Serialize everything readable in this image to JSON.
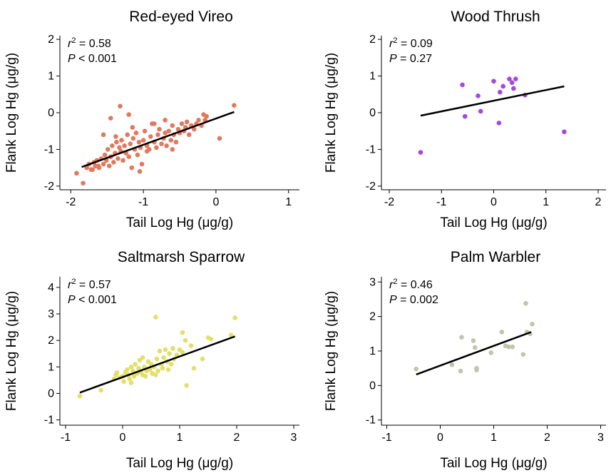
{
  "chart_data": [
    {
      "type": "scatter",
      "title": "Red-eyed Vireo",
      "xlabel": "Tail Log Hg (μg/g)",
      "ylabel": "Flank Log Hg (μg/g)",
      "xlim": [
        -2.15,
        1.15
      ],
      "ylim": [
        -2.1,
        2.1
      ],
      "xticks": [
        -2,
        -1,
        0,
        1
      ],
      "yticks": [
        -2,
        -1,
        0,
        1,
        2
      ],
      "color": "#E07A5F",
      "stat_r2": "= 0.58",
      "stat_p": "< 0.001",
      "fit": {
        "x": [
          -1.85,
          0.25
        ],
        "y": [
          -1.48,
          0.02
        ]
      },
      "series": [
        {
          "x": [
            -1.92,
            -1.83,
            -1.78,
            -1.75,
            -1.72,
            -1.68,
            -1.66,
            -1.64,
            -1.61,
            -1.58,
            -1.55,
            -1.53,
            -1.51,
            -1.49,
            -1.47,
            -1.45,
            -1.43,
            -1.41,
            -1.39,
            -1.37,
            -1.35,
            -1.33,
            -1.31,
            -1.3,
            -1.28,
            -1.26,
            -1.24,
            -1.22,
            -1.2,
            -1.18,
            -1.16,
            -1.14,
            -1.12,
            -1.1,
            -1.08,
            -1.06,
            -1.04,
            -1.02,
            -1.0,
            -0.98,
            -0.95,
            -0.92,
            -0.9,
            -0.88,
            -0.85,
            -0.82,
            -0.8,
            -0.78,
            -0.75,
            -0.72,
            -0.7,
            -0.68,
            -0.65,
            -0.62,
            -0.6,
            -0.58,
            -0.55,
            -0.52,
            -0.5,
            -0.47,
            -0.44,
            -0.42,
            -0.4,
            -0.37,
            -0.34,
            -0.3,
            -0.27,
            -0.24,
            -0.2,
            -0.17,
            -0.15,
            -0.13,
            0.05,
            0.25,
            -1.32,
            -1.45,
            -1.55,
            -1.2,
            -1.05,
            -0.95,
            -0.7,
            -0.85,
            -1.15,
            -1.38,
            -1.62,
            -1.7,
            -0.6
          ],
          "y": [
            -1.65,
            -1.92,
            -1.5,
            -1.4,
            -1.55,
            -1.35,
            -1.45,
            -1.3,
            -1.5,
            -1.25,
            -1.4,
            -1.15,
            -1.3,
            -1.0,
            -1.45,
            -1.2,
            -0.9,
            -1.35,
            -1.1,
            -0.8,
            -1.25,
            -0.95,
            -1.05,
            -0.75,
            -1.3,
            -0.9,
            -1.1,
            -0.6,
            -1.2,
            -0.85,
            -1.5,
            -0.7,
            -1.0,
            -0.55,
            -1.15,
            -0.8,
            -0.95,
            -1.4,
            -0.75,
            -0.5,
            -0.9,
            -1.0,
            -0.65,
            -0.3,
            -0.8,
            -0.95,
            -0.6,
            -0.45,
            -0.85,
            -0.7,
            -0.55,
            -0.9,
            -0.5,
            -0.75,
            -0.35,
            -0.6,
            -0.8,
            -0.45,
            -0.55,
            -0.3,
            -0.5,
            -0.4,
            -0.25,
            -0.6,
            -0.35,
            -0.45,
            -0.3,
            -0.2,
            -0.35,
            -0.05,
            -0.2,
            -0.1,
            -0.7,
            0.2,
            0.18,
            -0.15,
            -0.6,
            -0.05,
            -1.6,
            -1.05,
            -0.2,
            -0.3,
            -0.4,
            -0.65,
            -1.45,
            -1.55,
            -1.0
          ]
        }
      ]
    },
    {
      "type": "scatter",
      "title": "Wood Thrush",
      "xlabel": "Tail Log Hg (μg/g)",
      "ylabel": "Flank Log Hg (μg/g)",
      "xlim": [
        -2.15,
        2.15
      ],
      "ylim": [
        -2.1,
        2.1
      ],
      "xticks": [
        -2,
        -1,
        0,
        1,
        2
      ],
      "yticks": [
        -2,
        -1,
        0,
        1,
        2
      ],
      "color": "#A646E0",
      "stat_r2": "= 0.09",
      "stat_p": "= 0.27",
      "fit": {
        "x": [
          -1.4,
          1.35
        ],
        "y": [
          -0.08,
          0.72
        ]
      },
      "series": [
        {
          "x": [
            -1.4,
            -0.6,
            -0.55,
            -0.3,
            -0.25,
            0.0,
            0.1,
            0.12,
            0.18,
            0.3,
            0.35,
            0.38,
            0.42,
            0.6,
            1.35
          ],
          "y": [
            -1.08,
            0.76,
            -0.1,
            0.46,
            0.04,
            0.86,
            -0.28,
            0.56,
            0.72,
            0.92,
            0.82,
            0.66,
            0.92,
            0.48,
            -0.52
          ]
        }
      ]
    },
    {
      "type": "scatter",
      "title": "Saltmarsh Sparrow",
      "xlabel": "Tail Log Hg (μg/g)",
      "ylabel": "Flank Log Hg (μg/g)",
      "xlim": [
        -1.1,
        3.1
      ],
      "ylim": [
        -1.2,
        4.4
      ],
      "xticks": [
        -1,
        0,
        1,
        2,
        3
      ],
      "yticks": [
        -1,
        0,
        1,
        2,
        3,
        4
      ],
      "color": "#E2E06A",
      "stat_r2": "= 0.57",
      "stat_p": "< 0.001",
      "fit": {
        "x": [
          -0.75,
          1.97
        ],
        "y": [
          0.03,
          2.15
        ]
      },
      "series": [
        {
          "x": [
            -0.75,
            -0.38,
            -0.15,
            -0.12,
            -0.1,
            -0.05,
            0.0,
            0.02,
            0.05,
            0.08,
            0.1,
            0.12,
            0.15,
            0.18,
            0.2,
            0.22,
            0.25,
            0.28,
            0.3,
            0.32,
            0.35,
            0.38,
            0.4,
            0.42,
            0.45,
            0.48,
            0.5,
            0.52,
            0.55,
            0.58,
            0.6,
            0.62,
            0.65,
            0.68,
            0.7,
            0.72,
            0.75,
            0.78,
            0.8,
            0.82,
            0.85,
            0.88,
            0.9,
            0.95,
            1.0,
            1.05,
            1.1,
            1.12,
            1.2,
            1.25,
            1.4,
            1.5,
            1.55,
            1.9,
            1.97,
            0.58,
            1.05,
            0.35,
            0.15
          ],
          "y": [
            -0.1,
            0.12,
            0.55,
            0.7,
            0.78,
            0.6,
            0.65,
            0.45,
            0.8,
            0.9,
            0.7,
            0.55,
            1.0,
            0.85,
            0.65,
            1.1,
            0.75,
            0.95,
            1.25,
            0.8,
            0.7,
            1.0,
            0.65,
            0.85,
            1.2,
            0.9,
            1.1,
            0.75,
            1.0,
            0.7,
            1.3,
            0.85,
            1.6,
            1.1,
            0.95,
            1.35,
            1.65,
            1.2,
            0.9,
            1.5,
            1.1,
            1.7,
            1.3,
            1.45,
            1.65,
            1.55,
            2.0,
            0.3,
            1.8,
            0.95,
            1.3,
            2.1,
            2.05,
            2.2,
            2.85,
            2.88,
            2.3,
            1.35,
            0.4
          ]
        }
      ]
    },
    {
      "type": "scatter",
      "title": "Palm Warbler",
      "xlabel": "Tail Log Hg (μg/g)",
      "ylabel": "Flank Log Hg (μg/g)",
      "xlim": [
        -1.1,
        3.1
      ],
      "ylim": [
        -1.15,
        3.15
      ],
      "xticks": [
        -1,
        0,
        1,
        2,
        3
      ],
      "yticks": [
        -1,
        0,
        1,
        2,
        3
      ],
      "color": "#C2C4AE",
      "stat_r2": "= 0.46",
      "stat_p": "= 0.002",
      "fit": {
        "x": [
          -0.45,
          1.7
        ],
        "y": [
          0.32,
          1.55
        ]
      },
      "series": [
        {
          "x": [
            -0.45,
            0.22,
            0.38,
            0.4,
            0.62,
            0.65,
            0.68,
            0.68,
            0.95,
            1.15,
            1.22,
            1.28,
            1.35,
            1.55,
            1.6,
            1.68,
            1.72,
            1.62
          ],
          "y": [
            0.48,
            0.6,
            0.42,
            1.4,
            1.3,
            1.1,
            0.5,
            0.45,
            0.95,
            1.55,
            1.15,
            1.12,
            1.12,
            0.9,
            2.38,
            1.5,
            1.78,
            1.55
          ]
        }
      ]
    }
  ]
}
